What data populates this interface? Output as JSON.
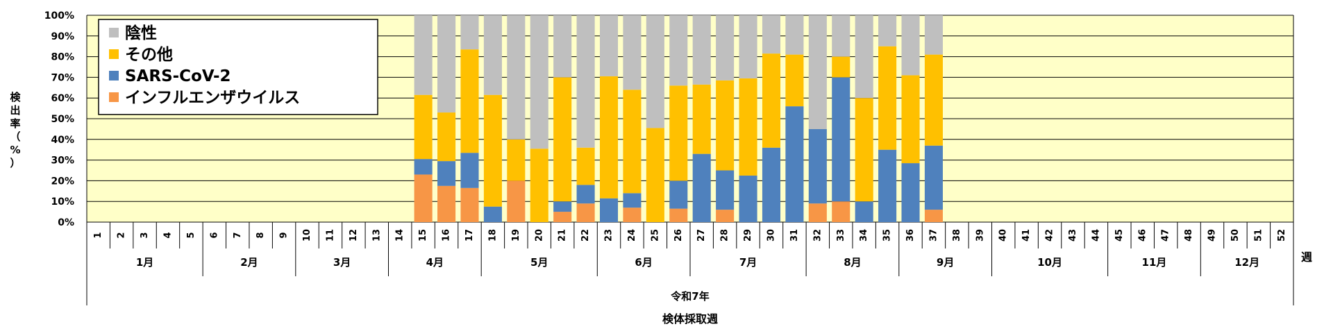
{
  "chart_data": {
    "type": "bar",
    "stacked": true,
    "title": "",
    "ylabel": "検出率（%）",
    "xlabel": "検体採取週",
    "x_unit_label": "週",
    "era_label": "令和7年",
    "ylim": [
      0,
      100
    ],
    "yticks": [
      "0%",
      "10%",
      "20%",
      "30%",
      "40%",
      "50%",
      "60%",
      "70%",
      "80%",
      "90%",
      "100%"
    ],
    "grid": true,
    "legend_position": "top-left",
    "plot_background": "#ffffc8",
    "weeks": [
      "1",
      "2",
      "3",
      "4",
      "5",
      "6",
      "7",
      "8",
      "9",
      "10",
      "11",
      "12",
      "13",
      "14",
      "15",
      "16",
      "17",
      "18",
      "19",
      "20",
      "21",
      "22",
      "23",
      "24",
      "25",
      "26",
      "27",
      "28",
      "29",
      "30",
      "31",
      "32",
      "33",
      "34",
      "35",
      "36",
      "37",
      "38",
      "39",
      "40",
      "41",
      "42",
      "43",
      "44",
      "45",
      "46",
      "47",
      "48",
      "49",
      "50",
      "51",
      "52"
    ],
    "months": [
      {
        "label": "1月",
        "start": 1,
        "end": 5
      },
      {
        "label": "2月",
        "start": 6,
        "end": 9
      },
      {
        "label": "3月",
        "start": 10,
        "end": 13
      },
      {
        "label": "4月",
        "start": 14,
        "end": 17
      },
      {
        "label": "5月",
        "start": 18,
        "end": 22
      },
      {
        "label": "6月",
        "start": 23,
        "end": 26
      },
      {
        "label": "7月",
        "start": 27,
        "end": 31
      },
      {
        "label": "8月",
        "start": 32,
        "end": 35
      },
      {
        "label": "9月",
        "start": 36,
        "end": 39
      },
      {
        "label": "10月",
        "start": 40,
        "end": 44
      },
      {
        "label": "11月",
        "start": 45,
        "end": 48
      },
      {
        "label": "12月",
        "start": 49,
        "end": 52
      }
    ],
    "series": [
      {
        "name": "インフルエンザウイルス",
        "color": "#f79646",
        "values": [
          0,
          0,
          0,
          0,
          0,
          0,
          0,
          0,
          0,
          0,
          0,
          0,
          0,
          0,
          23,
          17.5,
          16.5,
          0,
          20,
          0,
          5,
          9,
          0,
          7,
          0,
          6.5,
          0,
          6,
          0,
          0,
          0,
          9,
          10,
          0,
          0,
          0,
          6,
          0,
          0,
          0,
          0,
          0,
          0,
          0,
          0,
          0,
          0,
          0,
          0,
          0,
          0,
          0
        ]
      },
      {
        "name": "SARS-CoV-2",
        "color": "#4f81bd",
        "values": [
          0,
          0,
          0,
          0,
          0,
          0,
          0,
          0,
          0,
          0,
          0,
          0,
          0,
          0,
          7.5,
          12,
          17,
          7.5,
          0,
          0,
          5,
          9,
          11.5,
          7,
          0,
          13.5,
          33,
          19,
          22.5,
          36,
          56,
          36,
          60,
          10,
          35,
          28.5,
          31,
          0,
          0,
          0,
          0,
          0,
          0,
          0,
          0,
          0,
          0,
          0,
          0,
          0,
          0,
          0
        ]
      },
      {
        "name": "その他",
        "color": "#ffc000",
        "values": [
          0,
          0,
          0,
          0,
          0,
          0,
          0,
          0,
          0,
          0,
          0,
          0,
          0,
          0,
          31,
          23.5,
          50,
          54,
          20,
          35.5,
          60,
          18,
          59,
          50,
          45.5,
          46,
          33.5,
          43.5,
          47,
          45.5,
          25,
          0,
          10,
          50,
          50,
          42.5,
          44,
          0,
          0,
          0,
          0,
          0,
          0,
          0,
          0,
          0,
          0,
          0,
          0,
          0,
          0,
          0
        ]
      },
      {
        "name": "陰性",
        "color": "#bfbfbf",
        "values": [
          0,
          0,
          0,
          0,
          0,
          0,
          0,
          0,
          0,
          0,
          0,
          0,
          0,
          0,
          38.5,
          47,
          16.5,
          38.5,
          60,
          64.5,
          30,
          64,
          29.5,
          36,
          54.5,
          34,
          33.5,
          31.5,
          30.5,
          18.5,
          19,
          55,
          20,
          40,
          15,
          29,
          19,
          0,
          0,
          0,
          0,
          0,
          0,
          0,
          0,
          0,
          0,
          0,
          0,
          0,
          0,
          0
        ]
      }
    ],
    "legend_order": [
      "陰性",
      "その他",
      "SARS-CoV-2",
      "インフルエンザウイルス"
    ]
  }
}
